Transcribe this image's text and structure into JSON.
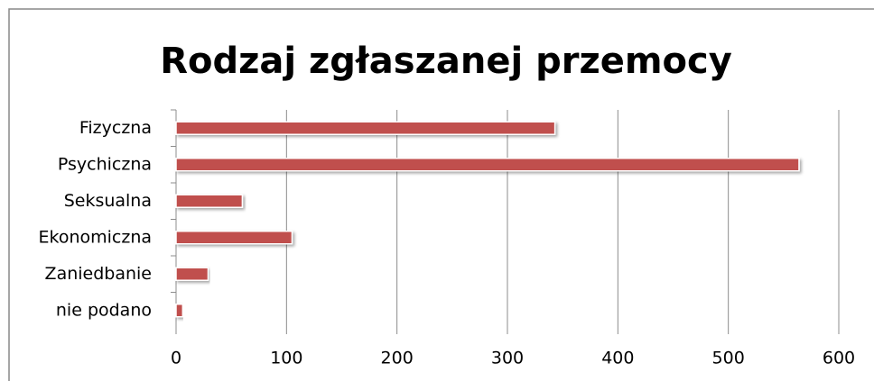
{
  "chart_data": {
    "type": "bar",
    "orientation": "horizontal",
    "title": "Rodzaj zgłaszanej przemocy",
    "categories": [
      "Fizyczna",
      "Psychiczna",
      "Seksualna",
      "Ekonomiczna",
      "Zaniedbanie",
      "nie podano"
    ],
    "values": [
      343,
      564,
      60,
      105,
      29,
      6
    ],
    "color": "#c0504d",
    "xlim": [
      0,
      600
    ],
    "xticks": [
      0,
      100,
      200,
      300,
      400,
      500,
      600
    ],
    "grid": true
  }
}
